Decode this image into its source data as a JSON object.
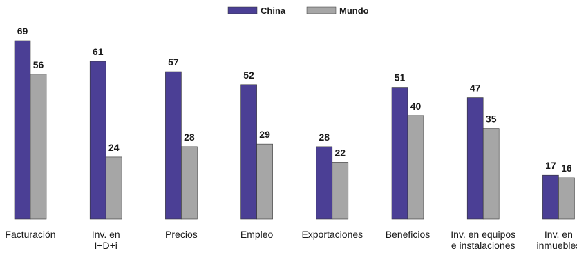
{
  "chart_data": {
    "type": "bar",
    "title": "",
    "xlabel": "",
    "ylabel": "",
    "ylim": [
      0,
      69
    ],
    "grid": false,
    "legend_position": "top-center",
    "categories": [
      [
        "Facturación"
      ],
      [
        "Inv. en",
        "I+D+i"
      ],
      [
        "Precios"
      ],
      [
        "Empleo"
      ],
      [
        "Exportaciones"
      ],
      [
        "Beneficios"
      ],
      [
        "Inv. en equipos",
        "e instalaciones"
      ],
      [
        "Inv. en",
        "inmuebles"
      ]
    ],
    "series": [
      {
        "name": "China",
        "color": "#4b3f95",
        "values": [
          69,
          61,
          57,
          52,
          28,
          51,
          47,
          17
        ]
      },
      {
        "name": "Mundo",
        "color": "#a6a6a6",
        "values": [
          56,
          24,
          28,
          29,
          22,
          40,
          35,
          16
        ]
      }
    ]
  }
}
